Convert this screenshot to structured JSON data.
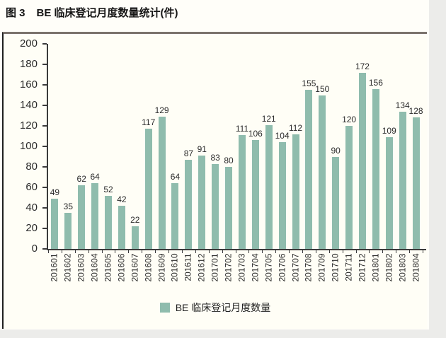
{
  "figure": {
    "title_prefix": "图 3",
    "title_main": "BE 临床登记月度数量统计(件)"
  },
  "chart_data": {
    "type": "bar",
    "title": "BE 临床登记月度数量统计(件)",
    "categories": [
      "201601",
      "201602",
      "201603",
      "201604",
      "201605",
      "201606",
      "201607",
      "201608",
      "201609",
      "201610",
      "201611",
      "201612",
      "201701",
      "201702",
      "201703",
      "201704",
      "201705",
      "201706",
      "201707",
      "201708",
      "201709",
      "201710",
      "201711",
      "201712",
      "201801",
      "201802",
      "201803",
      "201804"
    ],
    "values": [
      49,
      35,
      62,
      64,
      52,
      42,
      22,
      117,
      129,
      64,
      87,
      91,
      83,
      80,
      111,
      106,
      121,
      104,
      112,
      155,
      150,
      90,
      120,
      172,
      156,
      109,
      134,
      128
    ],
    "xlabel": "",
    "ylabel": "",
    "ylim": [
      0,
      200
    ],
    "ytick_step": 20,
    "grid": false,
    "data_labels": true,
    "legend": [
      "BE 临床登记月度数量"
    ],
    "legend_position": "bottom",
    "bar_color": "#8FBCAD"
  },
  "colors": {
    "bar": "#8FBCAD",
    "chart_background": "#FFFEF6",
    "page_background": "#ECECEA",
    "axis": "#3B3B3B",
    "text": "#2B2B2B"
  }
}
